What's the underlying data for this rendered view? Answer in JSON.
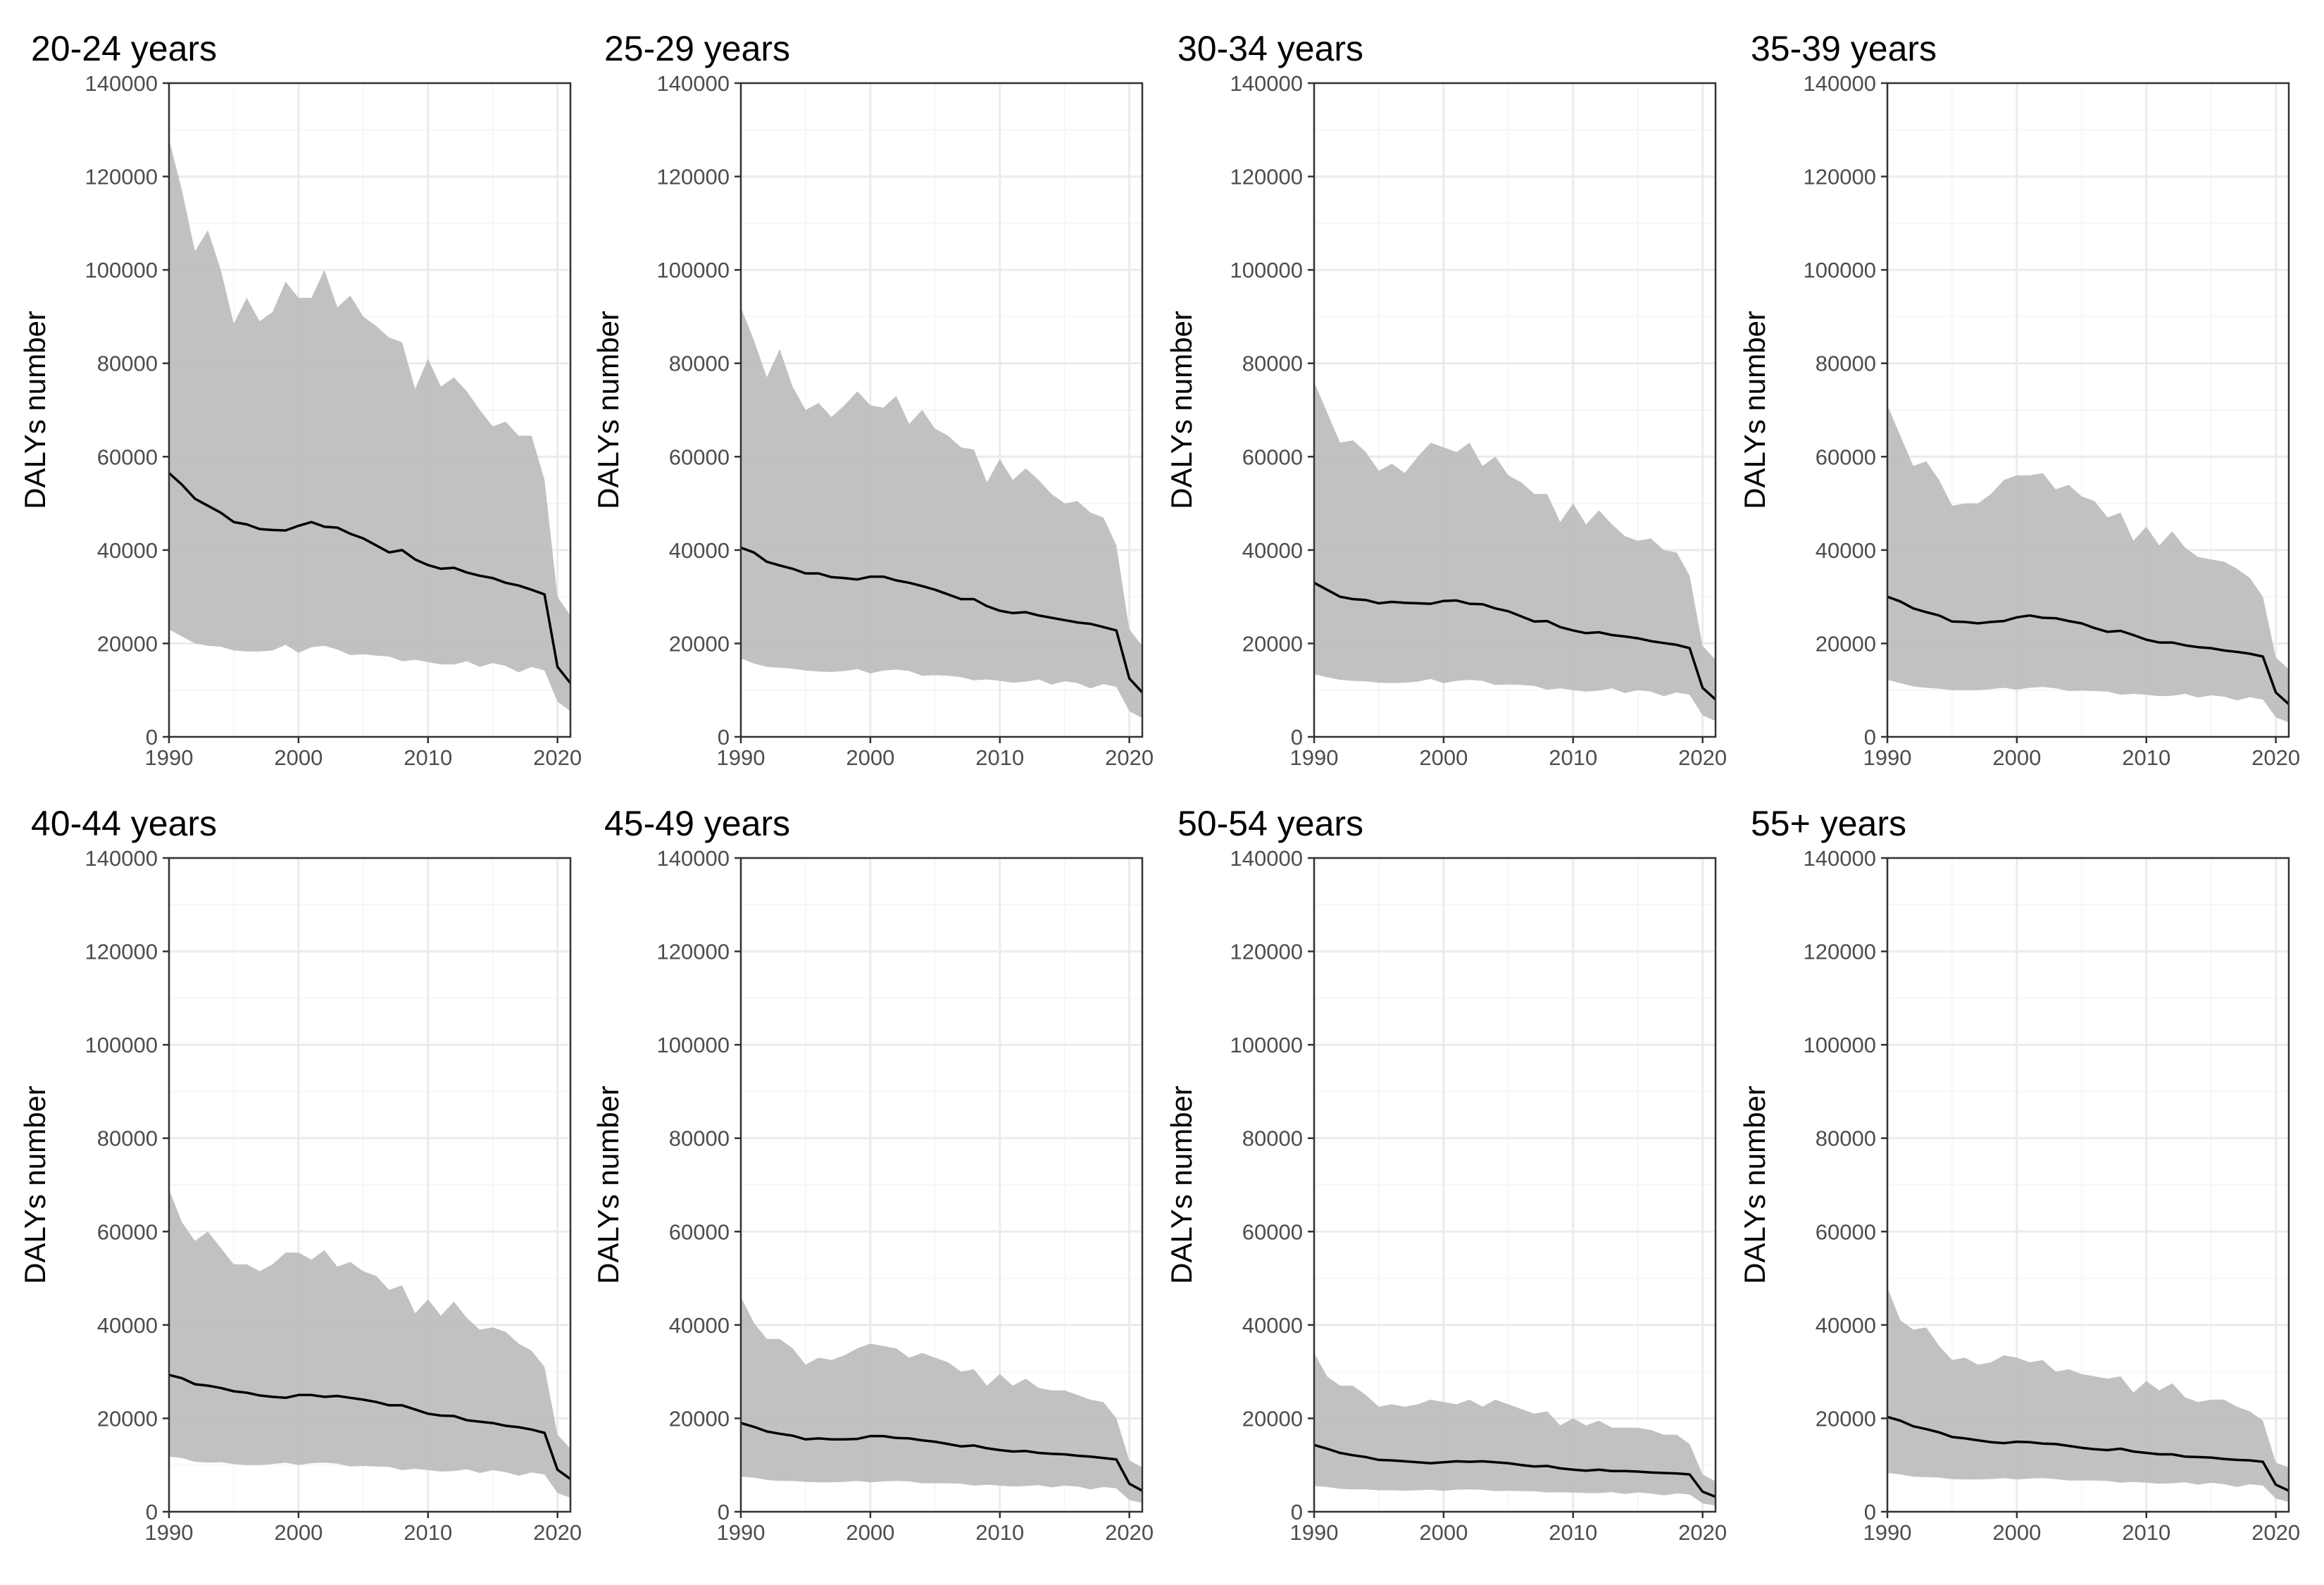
{
  "chart_data": {
    "type": "line",
    "ylabel": "DALYs number",
    "xlim": [
      1990,
      2021
    ],
    "ylim": [
      0,
      140000
    ],
    "x_ticks": [
      1990,
      2000,
      2010,
      2020
    ],
    "y_ticks": [
      0,
      20000,
      40000,
      60000,
      80000,
      100000,
      120000,
      140000
    ],
    "grid": true,
    "colors": {
      "band": "#bebebe",
      "line": "#000000",
      "grid_major": "#ebebeb",
      "grid_minor": "#f4f4f4",
      "axis": "#333333",
      "tick_text": "#4d4d4d"
    },
    "years": [
      1990,
      1991,
      1992,
      1993,
      1994,
      1995,
      1996,
      1997,
      1998,
      1999,
      2000,
      2001,
      2002,
      2003,
      2004,
      2005,
      2006,
      2007,
      2008,
      2009,
      2010,
      2011,
      2012,
      2013,
      2014,
      2015,
      2016,
      2017,
      2018,
      2019,
      2020,
      2021
    ],
    "panels": [
      {
        "title": "20-24 years",
        "value": [
          56500,
          54000,
          51000,
          49500,
          48000,
          46000,
          45500,
          44500,
          44300,
          44200,
          45200,
          46000,
          45000,
          44800,
          43500,
          42500,
          41000,
          39500,
          40000,
          38000,
          36800,
          36000,
          36200,
          35200,
          34500,
          34000,
          33000,
          32400,
          31500,
          30500,
          15000,
          11500
        ],
        "upper": [
          128000,
          117000,
          104000,
          108500,
          100000,
          88500,
          94000,
          89000,
          91000,
          97500,
          94000,
          94000,
          100000,
          92000,
          94500,
          90000,
          88000,
          85500,
          84500,
          74500,
          81000,
          75000,
          77000,
          74000,
          70000,
          66500,
          67500,
          64500,
          64500,
          55000,
          30000,
          26000
        ],
        "lower": [
          23000,
          21500,
          20000,
          19500,
          19300,
          18500,
          18300,
          18300,
          18500,
          19700,
          18000,
          19200,
          19500,
          18700,
          17500,
          17700,
          17400,
          17200,
          16200,
          16500,
          16000,
          15500,
          15500,
          16200,
          15000,
          15800,
          15200,
          13800,
          15000,
          14200,
          7500,
          5500
        ]
      },
      {
        "title": "25-29 years",
        "value": [
          40500,
          39500,
          37500,
          36700,
          36000,
          35000,
          35000,
          34200,
          34000,
          33700,
          34300,
          34300,
          33500,
          33000,
          32300,
          31500,
          30500,
          29500,
          29500,
          28000,
          27000,
          26500,
          26700,
          26000,
          25500,
          25000,
          24500,
          24200,
          23500,
          22800,
          12500,
          9500
        ],
        "upper": [
          92000,
          85000,
          77000,
          83000,
          75000,
          70000,
          71500,
          68500,
          71000,
          74000,
          71000,
          70500,
          73000,
          67000,
          70000,
          66000,
          64500,
          62000,
          61500,
          54500,
          59500,
          55000,
          57500,
          55000,
          52000,
          50000,
          50500,
          48000,
          47000,
          41000,
          23000,
          19500
        ],
        "lower": [
          16800,
          15700,
          15000,
          14800,
          14600,
          14200,
          14000,
          13900,
          14100,
          14500,
          13600,
          14200,
          14400,
          14100,
          13100,
          13200,
          13100,
          12800,
          12100,
          12300,
          12000,
          11600,
          11800,
          12300,
          11200,
          11900,
          11500,
          10400,
          11300,
          10700,
          5500,
          4000
        ]
      },
      {
        "title": "30-34 years",
        "value": [
          33000,
          31500,
          30000,
          29500,
          29300,
          28600,
          28900,
          28700,
          28600,
          28500,
          29100,
          29200,
          28500,
          28400,
          27500,
          26900,
          25800,
          24700,
          24800,
          23500,
          22800,
          22200,
          22400,
          21800,
          21500,
          21100,
          20500,
          20100,
          19700,
          19000,
          10500,
          8000
        ],
        "upper": [
          76000,
          69500,
          63000,
          63500,
          61000,
          57000,
          58500,
          56500,
          60000,
          63000,
          62000,
          61000,
          63000,
          58000,
          60000,
          56000,
          54500,
          52000,
          52000,
          46000,
          50000,
          45500,
          48500,
          45500,
          43000,
          42000,
          42500,
          40000,
          39500,
          34500,
          19500,
          16500
        ],
        "lower": [
          13400,
          12800,
          12200,
          12000,
          11900,
          11600,
          11500,
          11600,
          11800,
          12400,
          11500,
          12000,
          12200,
          12000,
          11100,
          11200,
          11100,
          10900,
          10100,
          10400,
          10000,
          9700,
          9900,
          10400,
          9400,
          10000,
          9700,
          8700,
          9500,
          9000,
          4600,
          3400
        ]
      },
      {
        "title": "35-39 years",
        "value": [
          30000,
          29000,
          27500,
          26700,
          26000,
          24700,
          24600,
          24300,
          24600,
          24800,
          25600,
          26000,
          25500,
          25400,
          24800,
          24300,
          23300,
          22500,
          22700,
          21800,
          20800,
          20200,
          20200,
          19600,
          19200,
          19000,
          18500,
          18200,
          17800,
          17200,
          9500,
          7000
        ],
        "upper": [
          71000,
          64500,
          58000,
          59000,
          55000,
          49500,
          50000,
          50000,
          52000,
          55000,
          56000,
          56000,
          56500,
          53000,
          54000,
          51500,
          50500,
          47000,
          48000,
          42000,
          45000,
          41000,
          44000,
          40500,
          38500,
          38000,
          37500,
          36000,
          34000,
          30000,
          17000,
          14500
        ],
        "lower": [
          12200,
          11500,
          10800,
          10500,
          10300,
          10000,
          10000,
          10000,
          10200,
          10500,
          10100,
          10500,
          10700,
          10400,
          9800,
          9900,
          9800,
          9700,
          9000,
          9200,
          9000,
          8700,
          8800,
          9200,
          8400,
          8900,
          8600,
          7800,
          8500,
          8000,
          4200,
          3100
        ]
      },
      {
        "title": "40-44 years",
        "value": [
          29300,
          28600,
          27300,
          27000,
          26500,
          25800,
          25500,
          24900,
          24600,
          24400,
          25000,
          25000,
          24600,
          24800,
          24400,
          24000,
          23500,
          22800,
          22800,
          21900,
          21000,
          20600,
          20500,
          19600,
          19300,
          19000,
          18400,
          18100,
          17600,
          16900,
          9000,
          7000
        ],
        "upper": [
          69000,
          62000,
          58000,
          60000,
          56500,
          53000,
          53000,
          51500,
          53000,
          55500,
          55500,
          54000,
          56000,
          52500,
          53500,
          51500,
          50500,
          47500,
          48500,
          42500,
          45500,
          42000,
          45000,
          41500,
          39000,
          39500,
          38500,
          36000,
          34500,
          31000,
          16500,
          13500
        ],
        "lower": [
          11800,
          11500,
          10700,
          10500,
          10600,
          10200,
          10000,
          10000,
          10200,
          10500,
          10000,
          10400,
          10500,
          10300,
          9700,
          9800,
          9700,
          9600,
          8900,
          9200,
          8900,
          8600,
          8700,
          9100,
          8300,
          8900,
          8500,
          7700,
          8400,
          8000,
          4000,
          3000
        ]
      },
      {
        "title": "45-49 years",
        "value": [
          19000,
          18200,
          17200,
          16700,
          16300,
          15500,
          15700,
          15500,
          15500,
          15600,
          16200,
          16200,
          15800,
          15700,
          15300,
          15000,
          14500,
          14000,
          14200,
          13600,
          13200,
          12900,
          13000,
          12600,
          12400,
          12300,
          12000,
          11800,
          11500,
          11200,
          6000,
          4500
        ],
        "upper": [
          46000,
          40500,
          37000,
          37000,
          35000,
          31500,
          33000,
          32500,
          33500,
          35000,
          36000,
          35500,
          35000,
          33000,
          34000,
          33000,
          32000,
          30000,
          30500,
          27000,
          29500,
          27000,
          28500,
          26500,
          26000,
          26000,
          25000,
          24000,
          23500,
          20000,
          11000,
          9500
        ],
        "lower": [
          7500,
          7300,
          6800,
          6600,
          6600,
          6400,
          6300,
          6300,
          6400,
          6600,
          6300,
          6500,
          6600,
          6500,
          6100,
          6100,
          6100,
          6000,
          5600,
          5800,
          5600,
          5400,
          5500,
          5700,
          5200,
          5600,
          5400,
          4800,
          5300,
          5000,
          2500,
          1900
        ]
      },
      {
        "title": "50-54 years",
        "value": [
          14300,
          13500,
          12600,
          12100,
          11700,
          11100,
          11000,
          10800,
          10600,
          10400,
          10600,
          10800,
          10700,
          10800,
          10600,
          10400,
          10000,
          9700,
          9800,
          9300,
          9000,
          8800,
          9000,
          8700,
          8700,
          8600,
          8400,
          8300,
          8200,
          8000,
          4300,
          3200
        ],
        "upper": [
          34000,
          29000,
          27000,
          27000,
          25000,
          22500,
          23000,
          22500,
          23000,
          24000,
          23500,
          23000,
          24000,
          22500,
          24000,
          23000,
          22000,
          21000,
          21500,
          18500,
          20000,
          18500,
          19500,
          18000,
          18000,
          18000,
          17500,
          16500,
          16500,
          14500,
          8000,
          6500
        ],
        "lower": [
          5500,
          5300,
          4900,
          4800,
          4800,
          4600,
          4600,
          4500,
          4600,
          4700,
          4500,
          4700,
          4800,
          4700,
          4400,
          4500,
          4400,
          4400,
          4100,
          4200,
          4100,
          4000,
          4000,
          4200,
          3800,
          4100,
          3900,
          3500,
          3900,
          3700,
          1800,
          1300
        ]
      },
      {
        "title": "55+ years",
        "value": [
          20300,
          19500,
          18300,
          17700,
          17000,
          16000,
          15700,
          15300,
          14900,
          14700,
          15000,
          14900,
          14600,
          14500,
          14100,
          13700,
          13400,
          13200,
          13500,
          12900,
          12600,
          12300,
          12300,
          11800,
          11700,
          11600,
          11300,
          11100,
          11000,
          10700,
          5800,
          4500
        ],
        "upper": [
          48000,
          41000,
          39000,
          39500,
          35500,
          32500,
          33000,
          31500,
          32000,
          33500,
          33000,
          32000,
          32500,
          30000,
          30500,
          29500,
          29000,
          28500,
          29000,
          25500,
          28000,
          26000,
          27500,
          24500,
          23500,
          24000,
          24000,
          22500,
          21500,
          19500,
          10500,
          9500
        ],
        "lower": [
          8300,
          8000,
          7500,
          7400,
          7300,
          7000,
          6900,
          6900,
          7000,
          7200,
          6900,
          7100,
          7200,
          7000,
          6700,
          6700,
          6700,
          6600,
          6200,
          6400,
          6200,
          6000,
          6100,
          6300,
          5800,
          6200,
          5900,
          5300,
          5900,
          5600,
          2800,
          2100
        ]
      }
    ]
  }
}
